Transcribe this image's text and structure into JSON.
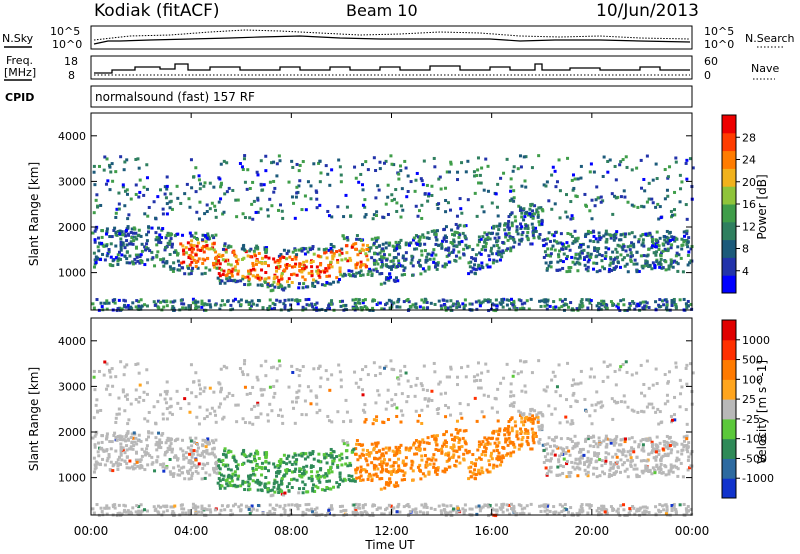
{
  "header": {
    "station": "Kodiak (fitACF)",
    "beam": "Beam 10",
    "date": "10/Jun/2013"
  },
  "status_panel": {
    "nsky_label": "N.Sky",
    "nsky_ticks": [
      "10^5",
      "10^0"
    ],
    "nsearch_label": "N.Search",
    "nsearch_ticks": [
      "10^5",
      "10^0"
    ],
    "freq_label": "Freq.",
    "freq_unit": "[MHz]",
    "freq_ticks": [
      "18",
      "8"
    ],
    "nave_label": "Nave",
    "nave_ticks": [
      "60",
      "0"
    ],
    "cpid_label": "CPID",
    "cpid_text": "normalsound (fast) 157 RF"
  },
  "chart_data": [
    {
      "type": "heatmap",
      "name": "power",
      "ylabel": "Slant Range [km]",
      "yticks": [
        "4000",
        "3000",
        "2000",
        "1000"
      ],
      "ytick_values": [
        4000,
        3000,
        2000,
        1000
      ],
      "ylim": [
        180,
        4500
      ],
      "xlim": [
        0,
        24
      ],
      "colorbar_label": "Power [dB]",
      "colorbar_ticks": [
        "28",
        "24",
        "20",
        "16",
        "12",
        "8",
        "4"
      ],
      "colorbar_tick_values": [
        28,
        24,
        20,
        16,
        12,
        8,
        4
      ],
      "colorbar_range": [
        0,
        32
      ],
      "colorbar_colors": [
        "#0000ff",
        "#2233aa",
        "#1c5a7a",
        "#2f7f5f",
        "#3f9d49",
        "#8fc43a",
        "#f1b21c",
        "#ff7c00",
        "#ff3c00",
        "#ee0000"
      ]
    },
    {
      "type": "heatmap",
      "name": "velocity",
      "ylabel": "Slant Range [km]",
      "yticks": [
        "4000",
        "3000",
        "2000",
        "1000"
      ],
      "ytick_values": [
        4000,
        3000,
        2000,
        1000
      ],
      "ylim": [
        180,
        4500
      ],
      "xlim": [
        0,
        24
      ],
      "xlabel": "Time UT",
      "xticks": [
        "00:00",
        "04:00",
        "08:00",
        "12:00",
        "16:00",
        "20:00",
        "00:00"
      ],
      "xtick_values": [
        0,
        4,
        8,
        12,
        16,
        20,
        24
      ],
      "colorbar_label": "Velocity [m s^-1]",
      "colorbar_ticks": [
        "1000",
        "500",
        "100",
        "25",
        "-25",
        "-100",
        "-500",
        "-1000"
      ],
      "colorbar_colors": [
        "#1133cc",
        "#2d6aa0",
        "#2f8a58",
        "#5bc83a",
        "#b8b8b8",
        "#ffa51e",
        "#ff7a00",
        "#ff3000",
        "#e00000"
      ]
    }
  ]
}
